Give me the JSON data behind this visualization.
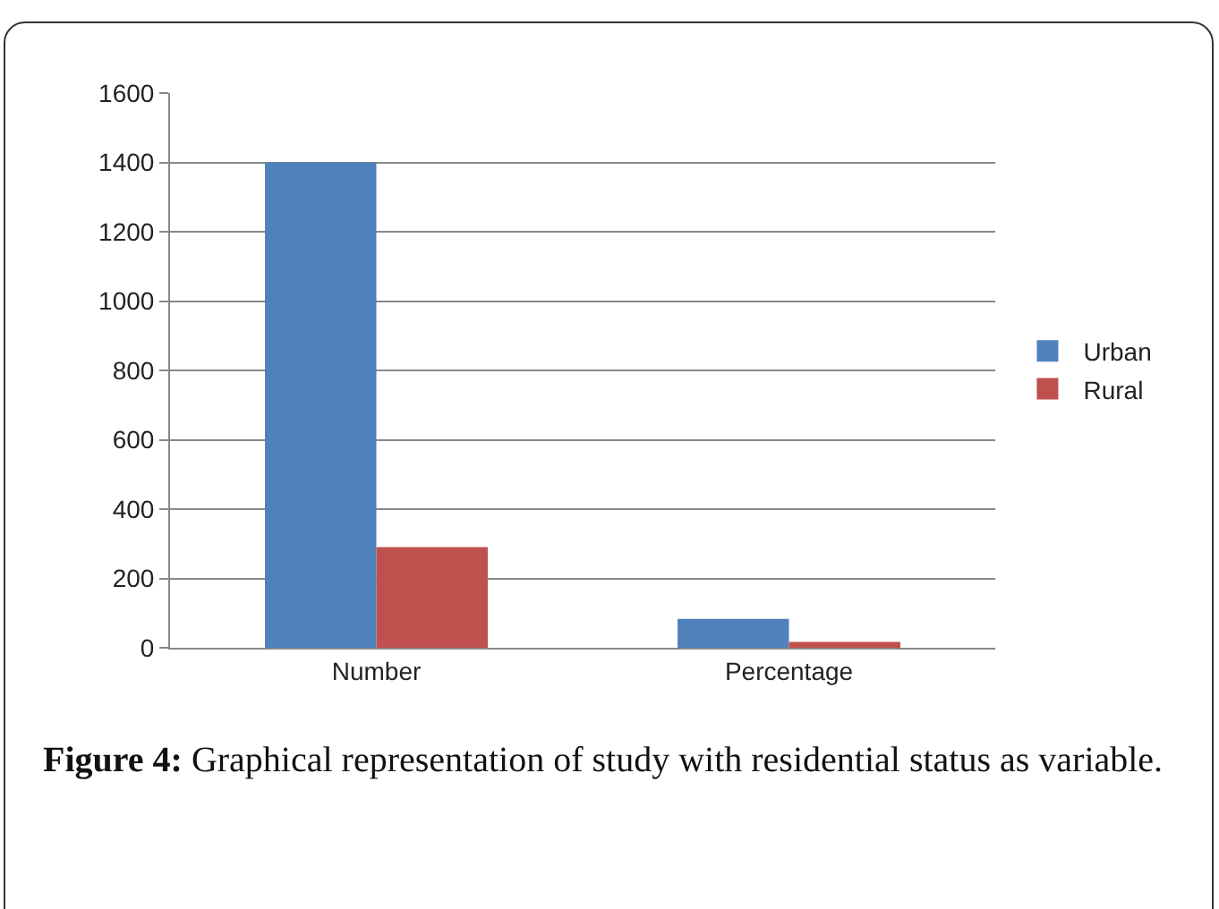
{
  "chart_data": {
    "type": "bar",
    "categories": [
      "Number",
      "Percentage"
    ],
    "series": [
      {
        "name": "Urban",
        "color": "#4f81bd",
        "values": [
          1400,
          83
        ]
      },
      {
        "name": "Rural",
        "color": "#c0504d",
        "values": [
          290,
          17
        ]
      }
    ],
    "ylim": [
      0,
      1600
    ],
    "yticks": [
      0,
      200,
      400,
      600,
      800,
      1000,
      1200,
      1400,
      1600
    ],
    "grid": "y",
    "legend": "right",
    "annotations": [
      "Figure 4: Graphical representation of study with residential status as variable."
    ]
  }
}
